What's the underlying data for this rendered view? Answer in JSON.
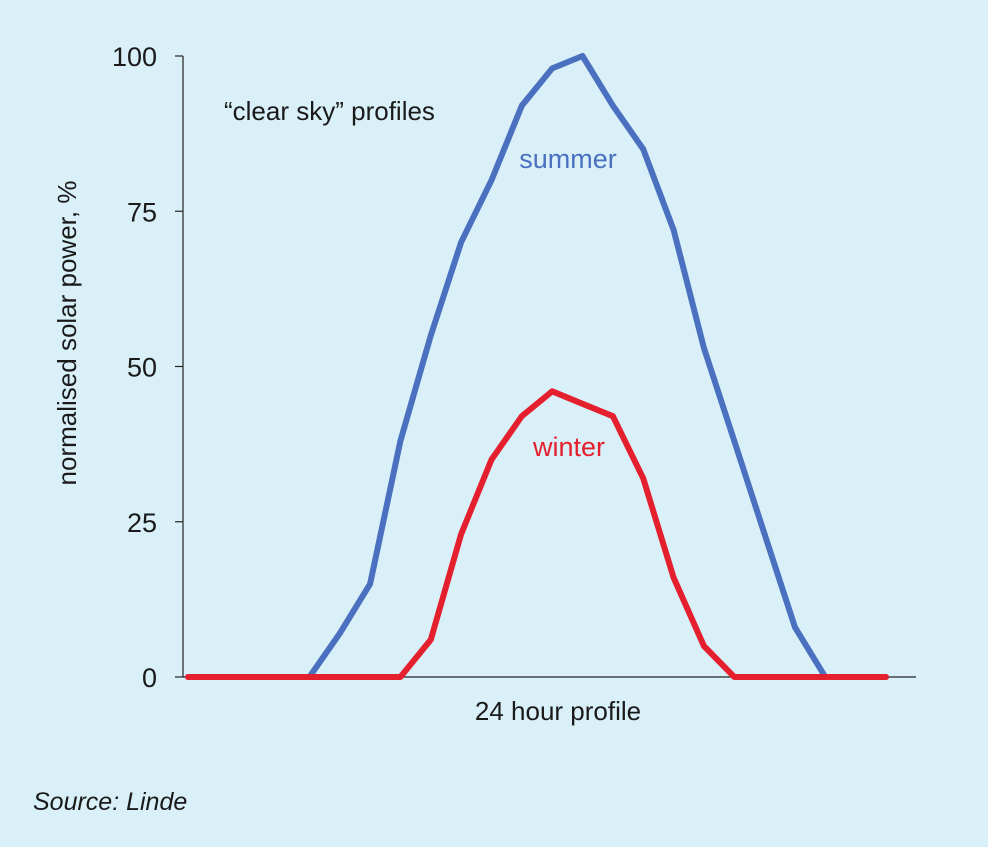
{
  "chart_data": {
    "type": "line",
    "annotation": "“clear sky” profiles",
    "xlabel": "24 hour profile",
    "ylabel": "normalised  solar power, %",
    "ylim": [
      0,
      100
    ],
    "yticks": [
      0,
      25,
      50,
      75,
      100
    ],
    "x": [
      0,
      1,
      2,
      3,
      4,
      5,
      6,
      7,
      8,
      9,
      10,
      11,
      12,
      13,
      14,
      15,
      16,
      17,
      18,
      19,
      20,
      21,
      22,
      23
    ],
    "series": [
      {
        "name": "summer",
        "color": "#4a70bf",
        "values": [
          0,
          0,
          0,
          0,
          0,
          7,
          15,
          38,
          55,
          70,
          80,
          92,
          98,
          100,
          92,
          85,
          72,
          53,
          38,
          23,
          8,
          0,
          0,
          0
        ]
      },
      {
        "name": "winter",
        "color": "#e5202e",
        "values": [
          0,
          0,
          0,
          0,
          0,
          0,
          0,
          0,
          6,
          23,
          35,
          42,
          46,
          44,
          42,
          32,
          16,
          5,
          0,
          0,
          0,
          0,
          0,
          0
        ]
      }
    ],
    "grid": false,
    "legend": "inline labels"
  },
  "source": "Source: Linde"
}
